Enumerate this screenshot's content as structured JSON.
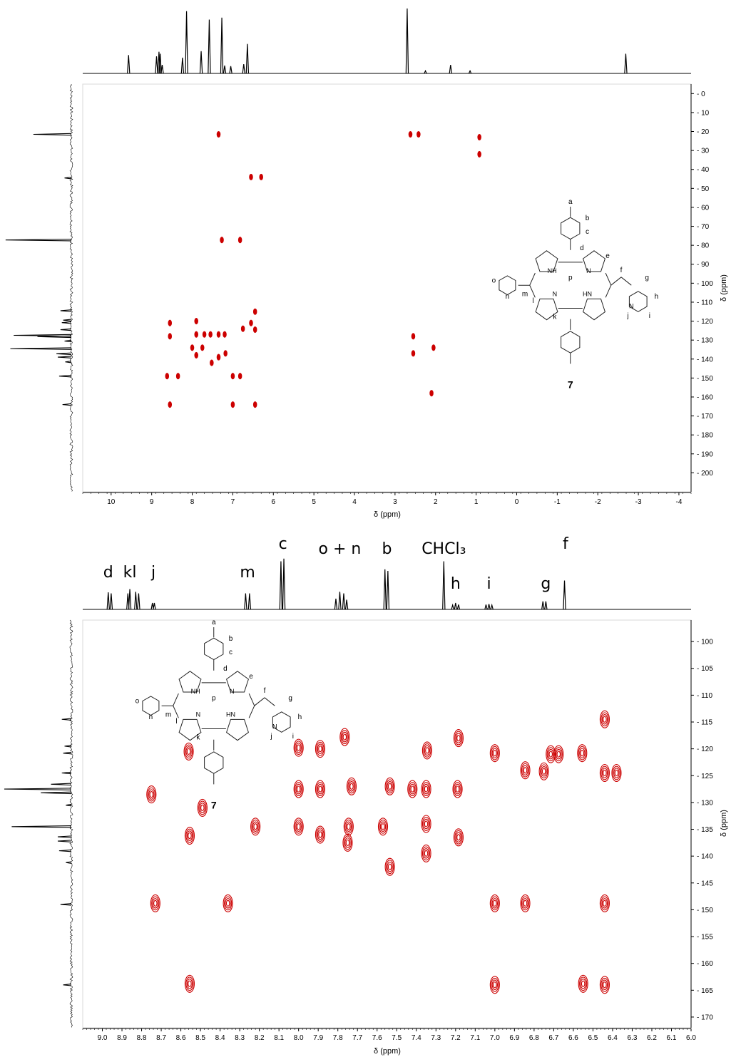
{
  "figure": {
    "compound_number": "7",
    "structure_labels": [
      "a",
      "b",
      "c",
      "d",
      "e",
      "f",
      "g",
      "h",
      "i",
      "j",
      "k",
      "l",
      "m",
      "n",
      "o",
      "p"
    ],
    "structure_atoms": [
      "NH",
      "N",
      "HN",
      "N",
      "N"
    ]
  },
  "chart_data": [
    {
      "type": "heatmap",
      "subtype": "2D NMR contour (HSQC/HMBC)",
      "xlabel": "δ (ppm)",
      "ylabel": "δ (ppm)",
      "xlim": [
        10.7,
        -4.3
      ],
      "ylim": [
        -5,
        210
      ],
      "x_ticks": [
        "10",
        "9",
        "8",
        "7",
        "6",
        "5",
        "4",
        "3",
        "2",
        "1",
        "0",
        "-1",
        "-2",
        "-3",
        "-4"
      ],
      "y_ticks": [
        "0",
        "10",
        "20",
        "30",
        "40",
        "50",
        "60",
        "70",
        "80",
        "90",
        "100",
        "110",
        "120",
        "130",
        "140",
        "150",
        "160",
        "170",
        "180",
        "190",
        "200"
      ],
      "color": "#cc0000",
      "top_projection_1H": [
        {
          "x": 9.57,
          "h": 0.28
        },
        {
          "x": 8.88,
          "h": 0.26
        },
        {
          "x": 8.82,
          "h": 0.33
        },
        {
          "x": 8.79,
          "h": 0.3
        },
        {
          "x": 8.74,
          "h": 0.13
        },
        {
          "x": 8.24,
          "h": 0.24
        },
        {
          "x": 8.14,
          "h": 0.95
        },
        {
          "x": 7.78,
          "h": 0.34
        },
        {
          "x": 7.58,
          "h": 0.82
        },
        {
          "x": 7.27,
          "h": 0.85
        },
        {
          "x": 7.2,
          "h": 0.12
        },
        {
          "x": 7.05,
          "h": 0.11
        },
        {
          "x": 6.73,
          "h": 0.14
        },
        {
          "x": 6.64,
          "h": 0.45
        },
        {
          "x": 2.7,
          "h": 0.99
        },
        {
          "x": 2.25,
          "h": 0.04
        },
        {
          "x": 1.63,
          "h": 0.13
        },
        {
          "x": 1.15,
          "h": 0.04
        },
        {
          "x": -2.69,
          "h": 0.3
        }
      ],
      "left_projection_13C": [
        {
          "y": 21.5,
          "h": 0.56
        },
        {
          "y": 44.5,
          "h": 0.1
        },
        {
          "y": 77.2,
          "h": 0.97
        },
        {
          "y": 114.5,
          "h": 0.16
        },
        {
          "y": 119.5,
          "h": 0.12
        },
        {
          "y": 120.8,
          "h": 0.14
        },
        {
          "y": 124.5,
          "h": 0.16
        },
        {
          "y": 127.5,
          "h": 0.85
        },
        {
          "y": 128.2,
          "h": 0.5
        },
        {
          "y": 130.5,
          "h": 0.1
        },
        {
          "y": 134.5,
          "h": 0.9
        },
        {
          "y": 137.2,
          "h": 0.22
        },
        {
          "y": 139.0,
          "h": 0.2
        },
        {
          "y": 141.5,
          "h": 0.09
        },
        {
          "y": 149.0,
          "h": 0.18
        },
        {
          "y": 164.0,
          "h": 0.13
        }
      ],
      "peaks": [
        {
          "x": 7.35,
          "y": 21.5
        },
        {
          "x": 2.62,
          "y": 21.5
        },
        {
          "x": 2.42,
          "y": 21.5
        },
        {
          "x": 0.92,
          "y": 23
        },
        {
          "x": 0.92,
          "y": 32
        },
        {
          "x": 6.55,
          "y": 44
        },
        {
          "x": 6.3,
          "y": 44
        },
        {
          "x": 7.27,
          "y": 77.2
        },
        {
          "x": 6.82,
          "y": 77.2
        },
        {
          "x": 8.55,
          "y": 121
        },
        {
          "x": 8.55,
          "y": 128
        },
        {
          "x": 8.62,
          "y": 149
        },
        {
          "x": 8.35,
          "y": 149
        },
        {
          "x": 8.55,
          "y": 164
        },
        {
          "x": 7.9,
          "y": 120
        },
        {
          "x": 7.9,
          "y": 127
        },
        {
          "x": 8.0,
          "y": 134
        },
        {
          "x": 7.9,
          "y": 138
        },
        {
          "x": 7.7,
          "y": 127
        },
        {
          "x": 7.75,
          "y": 134
        },
        {
          "x": 7.55,
          "y": 127
        },
        {
          "x": 7.52,
          "y": 142
        },
        {
          "x": 7.35,
          "y": 127
        },
        {
          "x": 7.35,
          "y": 139
        },
        {
          "x": 7.2,
          "y": 127
        },
        {
          "x": 7.18,
          "y": 137
        },
        {
          "x": 7.0,
          "y": 149
        },
        {
          "x": 7.0,
          "y": 164
        },
        {
          "x": 6.82,
          "y": 149
        },
        {
          "x": 6.55,
          "y": 121
        },
        {
          "x": 6.45,
          "y": 115
        },
        {
          "x": 6.45,
          "y": 124.5
        },
        {
          "x": 6.45,
          "y": 164
        },
        {
          "x": 6.75,
          "y": 124
        },
        {
          "x": 2.55,
          "y": 128
        },
        {
          "x": 2.55,
          "y": 137
        },
        {
          "x": 2.05,
          "y": 134
        },
        {
          "x": 2.1,
          "y": 158
        }
      ]
    },
    {
      "type": "heatmap",
      "subtype": "2D NMR contour (expanded aromatic region)",
      "xlabel": "δ (ppm)",
      "ylabel": "δ (ppm)",
      "xlim": [
        9.1,
        6.0
      ],
      "ylim": [
        96,
        172
      ],
      "x_ticks": [
        "9.0",
        "8.9",
        "8.8",
        "8.7",
        "8.6",
        "8.5",
        "8.4",
        "8.3",
        "8.2",
        "8.1",
        "8.0",
        "7.9",
        "7.8",
        "7.7",
        "7.6",
        "7.5",
        "7.4",
        "7.3",
        "7.2",
        "7.1",
        "7.0",
        "6.9",
        "6.8",
        "6.7",
        "6.6",
        "6.5",
        "6.4",
        "6.3",
        "6.2",
        "6.1",
        "6.0"
      ],
      "y_ticks": [
        "100",
        "105",
        "110",
        "115",
        "120",
        "125",
        "130",
        "135",
        "140",
        "145",
        "150",
        "155",
        "160",
        "165",
        "170"
      ],
      "color": "#cc0000",
      "peak_labels": [
        {
          "text": "d",
          "x": 8.97
        },
        {
          "text": "kl",
          "x": 8.86
        },
        {
          "text": "j",
          "x": 8.74
        },
        {
          "text": "m",
          "x": 8.26
        },
        {
          "text": "c",
          "x": 8.08
        },
        {
          "text": "o + n",
          "x": 7.79
        },
        {
          "text": "b",
          "x": 7.55
        },
        {
          "text": "CHCl₃",
          "x": 7.26
        },
        {
          "text": "h",
          "x": 7.2
        },
        {
          "text": "i",
          "x": 7.03
        },
        {
          "text": "g",
          "x": 6.74
        },
        {
          "text": "f",
          "x": 6.64
        }
      ],
      "top_projection_1H": [
        {
          "x": 8.97,
          "h": 0.32
        },
        {
          "x": 8.955,
          "h": 0.3
        },
        {
          "x": 8.87,
          "h": 0.3
        },
        {
          "x": 8.86,
          "h": 0.38
        },
        {
          "x": 8.83,
          "h": 0.33
        },
        {
          "x": 8.815,
          "h": 0.3
        },
        {
          "x": 8.745,
          "h": 0.12
        },
        {
          "x": 8.735,
          "h": 0.12
        },
        {
          "x": 8.27,
          "h": 0.3
        },
        {
          "x": 8.25,
          "h": 0.3
        },
        {
          "x": 8.09,
          "h": 0.9
        },
        {
          "x": 8.075,
          "h": 0.95
        },
        {
          "x": 7.81,
          "h": 0.2
        },
        {
          "x": 7.79,
          "h": 0.33
        },
        {
          "x": 7.77,
          "h": 0.3
        },
        {
          "x": 7.755,
          "h": 0.18
        },
        {
          "x": 7.56,
          "h": 0.75
        },
        {
          "x": 7.545,
          "h": 0.72
        },
        {
          "x": 7.26,
          "h": 0.9
        },
        {
          "x": 7.215,
          "h": 0.08
        },
        {
          "x": 7.2,
          "h": 0.12
        },
        {
          "x": 7.185,
          "h": 0.09
        },
        {
          "x": 7.045,
          "h": 0.09
        },
        {
          "x": 7.03,
          "h": 0.1
        },
        {
          "x": 7.015,
          "h": 0.08
        },
        {
          "x": 6.755,
          "h": 0.15
        },
        {
          "x": 6.74,
          "h": 0.15
        },
        {
          "x": 6.645,
          "h": 0.54
        }
      ],
      "left_projection_13C": [
        {
          "y": 114.5,
          "h": 0.14
        },
        {
          "y": 119.5,
          "h": 0.1
        },
        {
          "y": 120.8,
          "h": 0.12
        },
        {
          "y": 124.5,
          "h": 0.14
        },
        {
          "y": 126.6,
          "h": 0.3
        },
        {
          "y": 127.5,
          "h": 0.99
        },
        {
          "y": 128.2,
          "h": 0.45
        },
        {
          "y": 130.5,
          "h": 0.08
        },
        {
          "y": 134.5,
          "h": 0.88
        },
        {
          "y": 136.4,
          "h": 0.2
        },
        {
          "y": 137.2,
          "h": 0.2
        },
        {
          "y": 139.0,
          "h": 0.18
        },
        {
          "y": 141.2,
          "h": 0.08
        },
        {
          "y": 149.0,
          "h": 0.16
        },
        {
          "y": 164.0,
          "h": 0.12
        }
      ],
      "peaks": [
        {
          "x": 8.56,
          "y": 120.5
        },
        {
          "x": 8.75,
          "y": 128.5
        },
        {
          "x": 8.49,
          "y": 131.0
        },
        {
          "x": 8.555,
          "y": 136.2
        },
        {
          "x": 8.73,
          "y": 148.8
        },
        {
          "x": 8.36,
          "y": 148.8
        },
        {
          "x": 8.555,
          "y": 163.8
        },
        {
          "x": 8.22,
          "y": 134.5
        },
        {
          "x": 8.0,
          "y": 119.8
        },
        {
          "x": 8.0,
          "y": 127.5
        },
        {
          "x": 8.0,
          "y": 134.5
        },
        {
          "x": 7.89,
          "y": 120.0
        },
        {
          "x": 7.89,
          "y": 127.5
        },
        {
          "x": 7.89,
          "y": 136.0
        },
        {
          "x": 7.765,
          "y": 117.8
        },
        {
          "x": 7.73,
          "y": 127.0
        },
        {
          "x": 7.745,
          "y": 134.5
        },
        {
          "x": 7.75,
          "y": 137.5
        },
        {
          "x": 7.57,
          "y": 134.5
        },
        {
          "x": 7.535,
          "y": 127.0
        },
        {
          "x": 7.535,
          "y": 142.0
        },
        {
          "x": 7.42,
          "y": 127.5
        },
        {
          "x": 7.35,
          "y": 127.5
        },
        {
          "x": 7.35,
          "y": 134.0
        },
        {
          "x": 7.35,
          "y": 139.5
        },
        {
          "x": 7.345,
          "y": 120.3
        },
        {
          "x": 7.19,
          "y": 127.5
        },
        {
          "x": 7.185,
          "y": 136.5
        },
        {
          "x": 7.185,
          "y": 118.0
        },
        {
          "x": 7.0,
          "y": 120.8
        },
        {
          "x": 7.0,
          "y": 148.8
        },
        {
          "x": 7.0,
          "y": 164.0
        },
        {
          "x": 6.845,
          "y": 124.0
        },
        {
          "x": 6.845,
          "y": 148.8
        },
        {
          "x": 6.75,
          "y": 124.2
        },
        {
          "x": 6.715,
          "y": 121.0
        },
        {
          "x": 6.675,
          "y": 121.0
        },
        {
          "x": 6.555,
          "y": 120.8
        },
        {
          "x": 6.55,
          "y": 163.8
        },
        {
          "x": 6.44,
          "y": 114.5
        },
        {
          "x": 6.44,
          "y": 124.5
        },
        {
          "x": 6.44,
          "y": 148.8
        },
        {
          "x": 6.44,
          "y": 164.0
        },
        {
          "x": 6.38,
          "y": 124.5
        }
      ]
    }
  ]
}
